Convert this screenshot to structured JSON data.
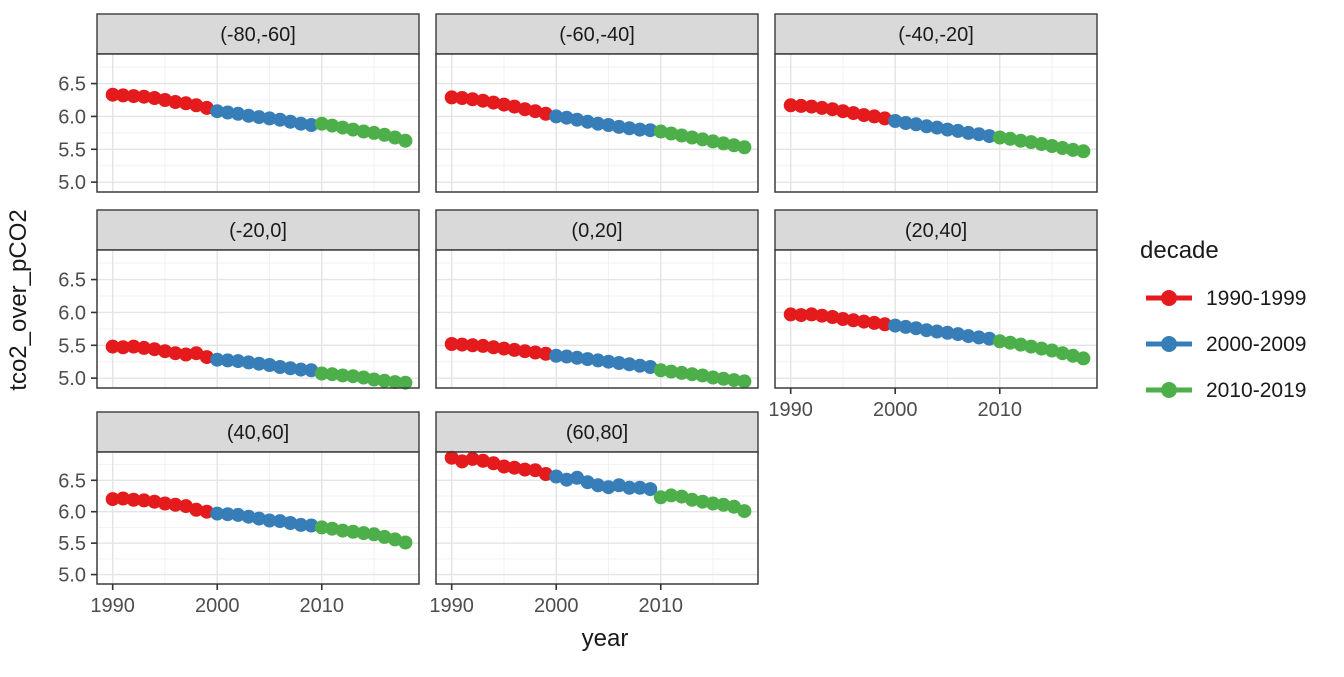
{
  "chart_data": {
    "type": "line",
    "title": "",
    "xlabel": "year",
    "ylabel": "tco2_over_pCO2",
    "facet_variable": "latitude_band",
    "series_variable": "decade",
    "grid": true,
    "legend_position": "right",
    "xlim": [
      1988.5,
      2019.3
    ],
    "ylim": [
      4.85,
      6.95
    ],
    "x_ticks": [
      1990,
      2000,
      2010
    ],
    "x_tick_labels": [
      "1990",
      "2000",
      "2010"
    ],
    "x_minor_ticks": [
      1995,
      2005,
      2015
    ],
    "y_ticks": [
      6.5,
      6.0,
      5.5,
      5.0
    ],
    "y_tick_labels": [
      "6.5",
      "6.0",
      "5.5",
      "5.0"
    ],
    "y_minor_ticks": [
      5.25,
      5.75,
      6.25,
      6.75
    ],
    "years": [
      1990,
      1991,
      1992,
      1993,
      1994,
      1995,
      1996,
      1997,
      1998,
      1999,
      2000,
      2001,
      2002,
      2003,
      2004,
      2005,
      2006,
      2007,
      2008,
      2009,
      2010,
      2011,
      2012,
      2013,
      2014,
      2015,
      2016,
      2017,
      2018
    ],
    "legend": {
      "title": "decade",
      "entries": [
        {
          "label": "1990-1999",
          "color": "#E41A1C",
          "years": [
            1990,
            1999
          ]
        },
        {
          "label": "2000-2009",
          "color": "#377EB8",
          "years": [
            2000,
            2009
          ]
        },
        {
          "label": "2010-2019",
          "color": "#4DAF4A",
          "years": [
            2010,
            2019
          ]
        }
      ]
    },
    "facets": [
      {
        "label": "(-80,-60]",
        "values": [
          6.33,
          6.32,
          6.31,
          6.3,
          6.28,
          6.25,
          6.22,
          6.2,
          6.17,
          6.13,
          6.08,
          6.06,
          6.04,
          6.01,
          5.99,
          5.97,
          5.95,
          5.92,
          5.89,
          5.87,
          5.89,
          5.86,
          5.83,
          5.8,
          5.77,
          5.75,
          5.72,
          5.68,
          5.63
        ]
      },
      {
        "label": "(-60,-40]",
        "values": [
          6.29,
          6.28,
          6.26,
          6.24,
          6.21,
          6.18,
          6.15,
          6.11,
          6.08,
          6.04,
          6.0,
          5.98,
          5.95,
          5.92,
          5.89,
          5.87,
          5.84,
          5.82,
          5.8,
          5.79,
          5.77,
          5.74,
          5.71,
          5.68,
          5.65,
          5.62,
          5.59,
          5.56,
          5.53
        ]
      },
      {
        "label": "(-40,-20]",
        "values": [
          6.17,
          6.16,
          6.15,
          6.13,
          6.11,
          6.08,
          6.05,
          6.02,
          6.0,
          5.97,
          5.93,
          5.9,
          5.88,
          5.85,
          5.83,
          5.8,
          5.78,
          5.75,
          5.73,
          5.7,
          5.68,
          5.66,
          5.63,
          5.61,
          5.58,
          5.55,
          5.52,
          5.49,
          5.47
        ]
      },
      {
        "label": "(-20,0]",
        "values": [
          5.48,
          5.47,
          5.48,
          5.46,
          5.44,
          5.41,
          5.38,
          5.36,
          5.38,
          5.32,
          5.28,
          5.27,
          5.26,
          5.24,
          5.22,
          5.2,
          5.17,
          5.15,
          5.13,
          5.12,
          5.07,
          5.06,
          5.04,
          5.03,
          5.01,
          4.98,
          4.96,
          4.94,
          4.93
        ]
      },
      {
        "label": "(0,20]",
        "values": [
          5.52,
          5.51,
          5.5,
          5.49,
          5.47,
          5.45,
          5.43,
          5.41,
          5.39,
          5.37,
          5.34,
          5.33,
          5.31,
          5.29,
          5.27,
          5.25,
          5.23,
          5.21,
          5.19,
          5.17,
          5.12,
          5.1,
          5.08,
          5.06,
          5.04,
          5.01,
          4.99,
          4.97,
          4.95
        ]
      },
      {
        "label": "(20,40]",
        "values": [
          5.97,
          5.96,
          5.97,
          5.95,
          5.93,
          5.9,
          5.88,
          5.86,
          5.84,
          5.82,
          5.8,
          5.78,
          5.76,
          5.73,
          5.71,
          5.69,
          5.67,
          5.64,
          5.62,
          5.6,
          5.56,
          5.54,
          5.51,
          5.48,
          5.45,
          5.42,
          5.38,
          5.34,
          5.3
        ]
      },
      {
        "label": "(40,60]",
        "values": [
          6.2,
          6.21,
          6.19,
          6.18,
          6.16,
          6.13,
          6.11,
          6.09,
          6.03,
          6.0,
          5.97,
          5.96,
          5.95,
          5.92,
          5.89,
          5.86,
          5.85,
          5.82,
          5.79,
          5.78,
          5.75,
          5.73,
          5.7,
          5.68,
          5.66,
          5.64,
          5.6,
          5.56,
          5.51
        ]
      },
      {
        "label": "(60,80]",
        "values": [
          6.86,
          6.8,
          6.84,
          6.81,
          6.77,
          6.72,
          6.7,
          6.67,
          6.66,
          6.6,
          6.56,
          6.51,
          6.54,
          6.47,
          6.42,
          6.39,
          6.42,
          6.38,
          6.38,
          6.36,
          6.23,
          6.26,
          6.24,
          6.19,
          6.16,
          6.13,
          6.11,
          6.08,
          6.01
        ]
      }
    ],
    "colors": {
      "strip_background": "#D9D9D9",
      "panel_background": "#FFFFFF",
      "panel_border": "#3b3b3b",
      "grid_major": "#E4E4E4",
      "grid_minor": "#F2F2F2",
      "tick_mark": "#333333",
      "tick_text": "#4d4d4d",
      "title_text": "#1a1a1a"
    }
  }
}
